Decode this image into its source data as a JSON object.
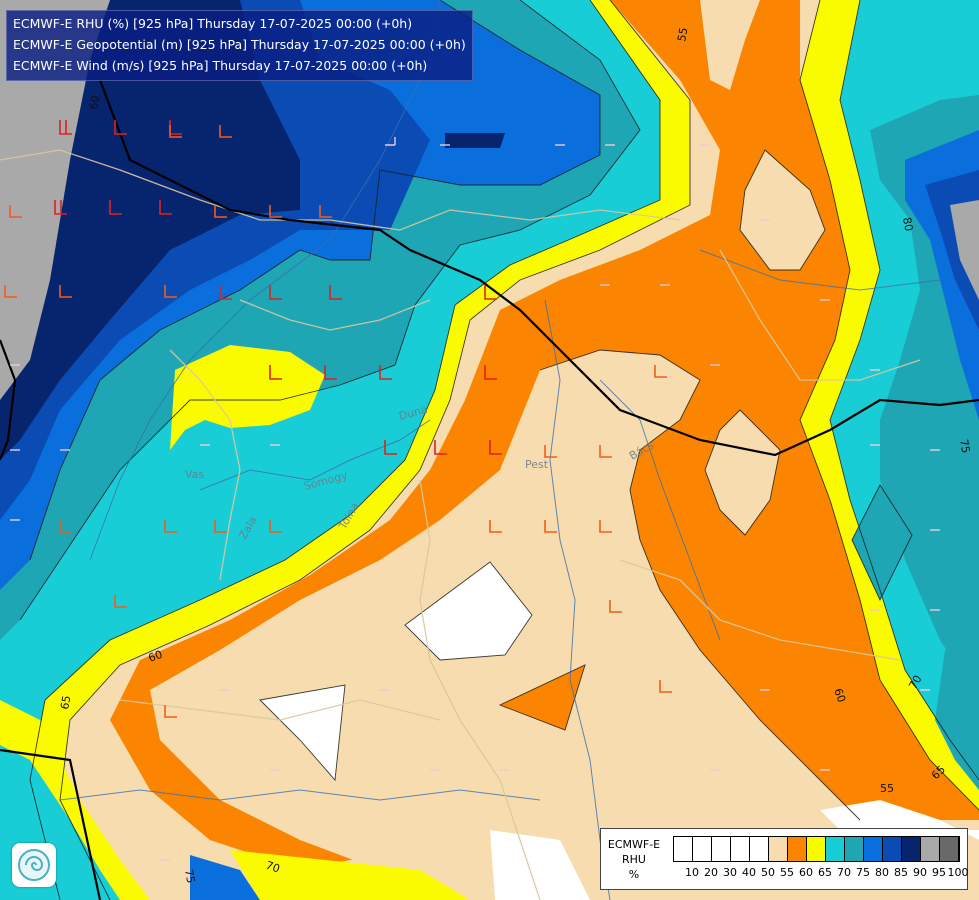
{
  "title_lines": [
    "ECMWF-E RHU (%) [925 hPa] Thursday 17-07-2025 00:00 (+0h)",
    "ECMWF-E Geopotential (m) [925 hPa] Thursday 17-07-2025 00:00 (+0h)",
    "ECMWF-E Wind (m/s) [925 hPa] Thursday 17-07-2025 00:00 (+0h)"
  ],
  "legend": {
    "label_lines": [
      "ECMWF-E",
      "RHU",
      "%"
    ],
    "ticks": [
      "10",
      "20",
      "30",
      "40",
      "50",
      "55",
      "60",
      "65",
      "70",
      "75",
      "80",
      "85",
      "90",
      "95",
      "100"
    ],
    "colors": [
      "#ffffff",
      "#ffffff",
      "#ffffff",
      "#ffffff",
      "#ffffff",
      "#f6dcae",
      "#fb8500",
      "#fbfb00",
      "#19cdd6",
      "#1ea6b4",
      "#0a6fdc",
      "#0a4cb4",
      "#07246e",
      "#a9a9a9",
      "#696969"
    ]
  },
  "contour_labels": [
    "55",
    "60",
    "60",
    "65",
    "55",
    "60",
    "65",
    "70",
    "75",
    "80",
    "70",
    "75",
    "65",
    "55",
    "60",
    "75"
  ],
  "place_labels": [
    "Pest",
    "Bács",
    "Vas",
    "Zala",
    "Somogy",
    "Tolna",
    "Duna"
  ],
  "colors": {
    "rh_lt55": "#f6dcae",
    "rh_55_60": "#fb8500",
    "rh_60_65": "#fbfb00",
    "rh_65_70": "#19cdd6",
    "rh_70_75": "#1ea6b4",
    "rh_75_80": "#0a6fdc",
    "rh_80_85": "#0a4cb4",
    "rh_85_90": "#07246e",
    "rh_90_95": "#a9a9a9",
    "rh_dry": "#ffffff",
    "border": "#000000",
    "river": "#3a6fb0",
    "admin": "#d8c8a0"
  }
}
